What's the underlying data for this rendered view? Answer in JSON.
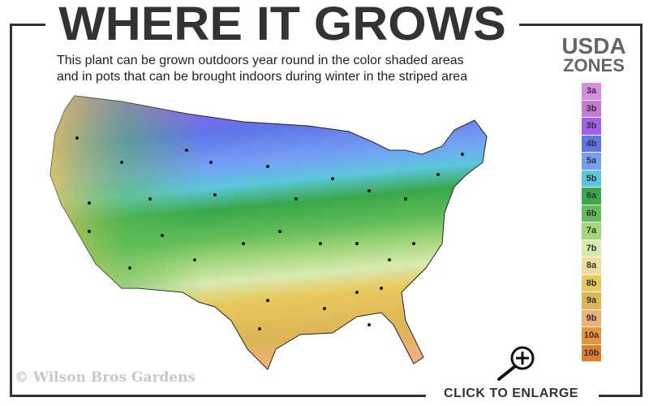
{
  "header": {
    "title": "WHERE IT GROWS",
    "subtitle_line1": "This plant can be grown outdoors year round in the color shaded areas",
    "subtitle_line2": "and in pots that can be brought indoors during winter in the striped area"
  },
  "legend": {
    "title_line1": "USDA",
    "title_line2": "ZONES",
    "zones": [
      {
        "label": "3a",
        "color": "#d98ee0"
      },
      {
        "label": "3b",
        "color": "#c57ad6"
      },
      {
        "label": "3b",
        "color": "#a45ef0"
      },
      {
        "label": "4b",
        "color": "#5f74e8"
      },
      {
        "label": "5a",
        "color": "#73a0f5"
      },
      {
        "label": "5b",
        "color": "#5cc6dc"
      },
      {
        "label": "6a",
        "color": "#39a84a"
      },
      {
        "label": "6b",
        "color": "#62bd58"
      },
      {
        "label": "7a",
        "color": "#a4d67c"
      },
      {
        "label": "7b",
        "color": "#d8eab0"
      },
      {
        "label": "8a",
        "color": "#eddc9a"
      },
      {
        "label": "8b",
        "color": "#e8c85a"
      },
      {
        "label": "9a",
        "color": "#dcb558"
      },
      {
        "label": "9b",
        "color": "#f0b07a"
      },
      {
        "label": "10a",
        "color": "#e99238"
      },
      {
        "label": "10b",
        "color": "#e07f2c"
      }
    ]
  },
  "footer": {
    "enlarge_label": "CLICK TO ENLARGE",
    "zoom_icon": "magnifier-plus-icon",
    "copyright": "© Wilson Bros Gardens"
  },
  "frame_color": "#333333"
}
